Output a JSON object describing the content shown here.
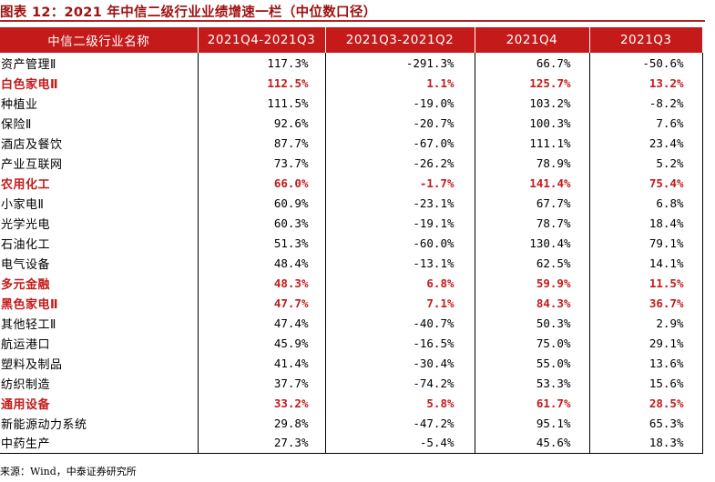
{
  "title": "图表 12：2021 年中信二级行业业绩增速一栏（中位数口径）",
  "colors": {
    "accent": "#c41a1a",
    "title": "#a01010"
  },
  "table": {
    "headers": [
      "中信二级行业名称",
      "2021Q4-2021Q3",
      "2021Q3-2021Q2",
      "2021Q4",
      "2021Q3"
    ],
    "rows": [
      {
        "name": "资产管理Ⅱ",
        "v1": "117.3%",
        "v2": "-291.3%",
        "v3": "66.7%",
        "v4": "-50.6%",
        "highlight": false
      },
      {
        "name": "白色家电Ⅱ",
        "v1": "112.5%",
        "v2": "1.1%",
        "v3": "125.7%",
        "v4": "13.2%",
        "highlight": true
      },
      {
        "name": "种植业",
        "v1": "111.5%",
        "v2": "-19.0%",
        "v3": "103.2%",
        "v4": "-8.2%",
        "highlight": false
      },
      {
        "name": "保险Ⅱ",
        "v1": "92.6%",
        "v2": "-20.7%",
        "v3": "100.3%",
        "v4": "7.6%",
        "highlight": false
      },
      {
        "name": "酒店及餐饮",
        "v1": "87.7%",
        "v2": "-67.0%",
        "v3": "111.1%",
        "v4": "23.4%",
        "highlight": false
      },
      {
        "name": "产业互联网",
        "v1": "73.7%",
        "v2": "-26.2%",
        "v3": "78.9%",
        "v4": "5.2%",
        "highlight": false
      },
      {
        "name": "农用化工",
        "v1": "66.0%",
        "v2": "-1.7%",
        "v3": "141.4%",
        "v4": "75.4%",
        "highlight": true
      },
      {
        "name": "小家电Ⅱ",
        "v1": "60.9%",
        "v2": "-23.1%",
        "v3": "67.7%",
        "v4": "6.8%",
        "highlight": false
      },
      {
        "name": "光学光电",
        "v1": "60.3%",
        "v2": "-19.1%",
        "v3": "78.7%",
        "v4": "18.4%",
        "highlight": false
      },
      {
        "name": "石油化工",
        "v1": "51.3%",
        "v2": "-60.0%",
        "v3": "130.4%",
        "v4": "79.1%",
        "highlight": false
      },
      {
        "name": "电气设备",
        "v1": "48.4%",
        "v2": "-13.1%",
        "v3": "62.5%",
        "v4": "14.1%",
        "highlight": false
      },
      {
        "name": "多元金融",
        "v1": "48.3%",
        "v2": "6.8%",
        "v3": "59.9%",
        "v4": "11.5%",
        "highlight": true
      },
      {
        "name": "黑色家电Ⅱ",
        "v1": "47.7%",
        "v2": "7.1%",
        "v3": "84.3%",
        "v4": "36.7%",
        "highlight": true
      },
      {
        "name": "其他轻工Ⅱ",
        "v1": "47.4%",
        "v2": "-40.7%",
        "v3": "50.3%",
        "v4": "2.9%",
        "highlight": false
      },
      {
        "name": "航运港口",
        "v1": "45.9%",
        "v2": "-16.5%",
        "v3": "75.0%",
        "v4": "29.1%",
        "highlight": false
      },
      {
        "name": "塑料及制品",
        "v1": "41.4%",
        "v2": "-30.4%",
        "v3": "55.0%",
        "v4": "13.6%",
        "highlight": false
      },
      {
        "name": "纺织制造",
        "v1": "37.7%",
        "v2": "-74.2%",
        "v3": "53.3%",
        "v4": "15.6%",
        "highlight": false
      },
      {
        "name": "通用设备",
        "v1": "33.2%",
        "v2": "5.8%",
        "v3": "61.7%",
        "v4": "28.5%",
        "highlight": true
      },
      {
        "name": "新能源动力系统",
        "v1": "29.8%",
        "v2": "-47.2%",
        "v3": "95.1%",
        "v4": "65.3%",
        "highlight": false
      },
      {
        "name": "中药生产",
        "v1": "27.3%",
        "v2": "-5.4%",
        "v3": "45.6%",
        "v4": "18.3%",
        "highlight": false
      }
    ]
  },
  "source": "来源：Wind，中泰证券研究所"
}
